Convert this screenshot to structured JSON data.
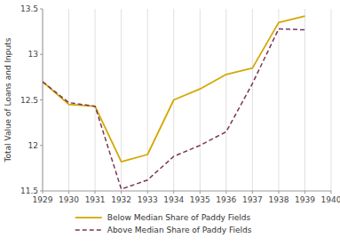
{
  "chart_data": {
    "type": "line",
    "y_label": "Total Value of Loans and Inputs",
    "x": [
      1929,
      1930,
      1931,
      1932,
      1933,
      1934,
      1935,
      1936,
      1937,
      1938,
      1939
    ],
    "series": [
      {
        "name": "Below Median Share of Paddy Fields",
        "color": "#d4a800",
        "line_style": "solid",
        "values": [
          12.7,
          12.45,
          12.43,
          11.82,
          11.9,
          12.5,
          12.62,
          12.78,
          12.85,
          13.35,
          13.42
        ]
      },
      {
        "name": "Above Median Share of Paddy Fields",
        "color": "#7b3558",
        "line_style": "dashed",
        "values": [
          12.7,
          12.47,
          12.43,
          11.52,
          11.62,
          11.88,
          12.0,
          12.15,
          12.68,
          13.28,
          13.27
        ]
      }
    ],
    "xlim": [
      1929,
      1940
    ],
    "xticks": [
      1929,
      1930,
      1931,
      1932,
      1933,
      1934,
      1935,
      1936,
      1937,
      1938,
      1939,
      1940
    ],
    "ylim": [
      11.5,
      13.5
    ],
    "yticks": [
      11.5,
      12,
      12.5,
      13,
      13.5
    ],
    "grid": true,
    "legend": "bottom"
  }
}
